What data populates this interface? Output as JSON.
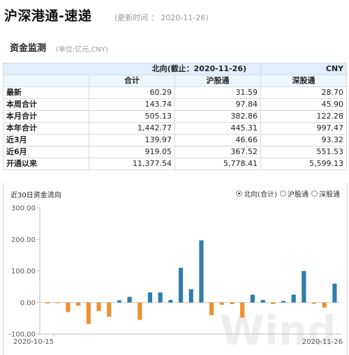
{
  "header": {
    "title": "沪深港通-速递",
    "updated": "(更新时间 ： 2020-11-26)"
  },
  "section": {
    "title": "资金监测",
    "unit": "(单位:亿元,CNY)"
  },
  "table": {
    "caption": "北向(截止：2020-11-26)",
    "currency": "CNY",
    "columns": [
      "合计",
      "沪股通",
      "深股通"
    ],
    "rows": [
      {
        "label": "最新",
        "values": [
          "60.29",
          "31.59",
          "28.70"
        ]
      },
      {
        "label": "本周合计",
        "values": [
          "143.74",
          "97.84",
          "45.90"
        ]
      },
      {
        "label": "本月合计",
        "values": [
          "505.13",
          "382.86",
          "122.28"
        ]
      },
      {
        "label": "本年合计",
        "values": [
          "1,442.77",
          "445.31",
          "997.47"
        ]
      },
      {
        "label": "近3月",
        "values": [
          "139.97",
          "46.66",
          "93.32"
        ]
      },
      {
        "label": "近6月",
        "values": [
          "919.05",
          "367.52",
          "551.53"
        ]
      },
      {
        "label": "开通以来",
        "values": [
          "11,377.54",
          "5,778.41",
          "5,599.13"
        ]
      }
    ]
  },
  "chart": {
    "title": "近30日资金流向",
    "options": [
      {
        "label": "北向(合计)",
        "checked": true
      },
      {
        "label": "沪股通",
        "checked": false
      },
      {
        "label": "深股通",
        "checked": false
      }
    ],
    "watermark": "Wind",
    "colors": {
      "positive": "#2f7dab",
      "negative": "#f0902f",
      "axis": "#bfbfbf",
      "zero": "#c8c8c8"
    }
  },
  "chart_data": {
    "type": "bar",
    "title": "近30日资金流向",
    "x_start_label": "2020-10-15",
    "x_end_label": "2020-11-26",
    "yticks": [
      "300.00",
      "200.00",
      "100.00",
      "0.00",
      "-100.00"
    ],
    "ylim": [
      -100,
      300
    ],
    "values": [
      -3,
      -2,
      -30,
      -10,
      -68,
      -27,
      -45,
      7,
      18,
      -55,
      32,
      32,
      8,
      110,
      42,
      197,
      -40,
      -7,
      -5,
      -48,
      25,
      8,
      -5,
      5,
      25,
      100,
      -4,
      -16,
      60
    ],
    "legend": [
      "北向(合计)",
      "沪股通",
      "深股通"
    ]
  }
}
